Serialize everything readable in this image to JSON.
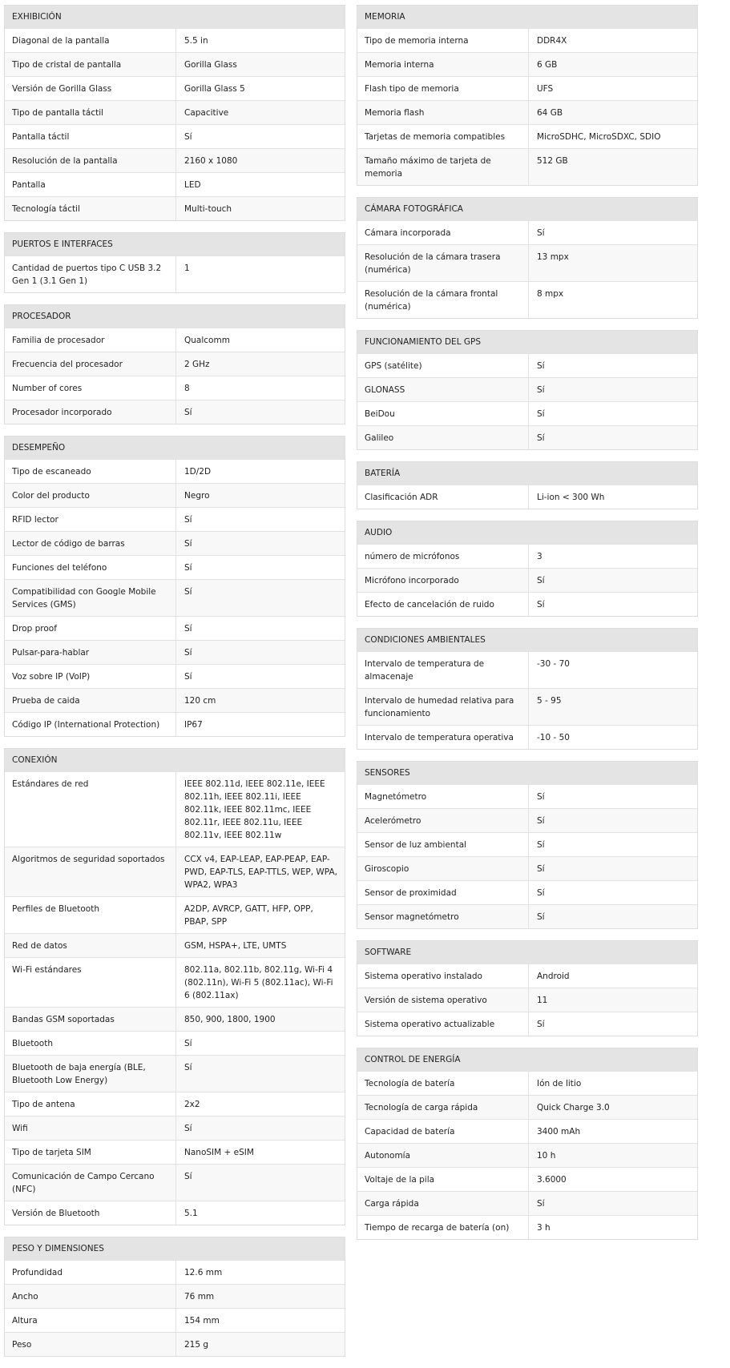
{
  "left": [
    {
      "title": "EXHIBICIÓN",
      "rows": [
        [
          "Diagonal de la pantalla",
          "5.5 in"
        ],
        [
          "Tipo de cristal de pantalla",
          "Gorilla Glass"
        ],
        [
          "Versión de Gorilla Glass",
          "Gorilla Glass 5"
        ],
        [
          "Tipo de pantalla táctil",
          "Capacitive"
        ],
        [
          "Pantalla táctil",
          "Sí"
        ],
        [
          "Resolución de la pantalla",
          "2160 x 1080"
        ],
        [
          "Pantalla",
          "LED"
        ],
        [
          "Tecnología táctil",
          "Multi-touch"
        ]
      ]
    },
    {
      "title": "PUERTOS E INTERFACES",
      "rows": [
        [
          "Cantidad de puertos tipo C USB 3.2 Gen 1 (3.1 Gen 1)",
          "1"
        ]
      ]
    },
    {
      "title": "PROCESADOR",
      "rows": [
        [
          "Familia de procesador",
          "Qualcomm"
        ],
        [
          "Frecuencia del procesador",
          "2 GHz"
        ],
        [
          "Number of cores",
          "8"
        ],
        [
          "Procesador incorporado",
          "Sí"
        ]
      ]
    },
    {
      "title": "DESEMPEÑO",
      "rows": [
        [
          "Tipo de escaneado",
          "1D/2D"
        ],
        [
          "Color del producto",
          "Negro"
        ],
        [
          "RFID lector",
          "Sí"
        ],
        [
          "Lector de código de barras",
          "Sí"
        ],
        [
          "Funciones del teléfono",
          "Sí"
        ],
        [
          "Compatibilidad con Google Mobile Services (GMS)",
          "Sí"
        ],
        [
          "Drop proof",
          "Sí"
        ],
        [
          "Pulsar-para-hablar",
          "Sí"
        ],
        [
          "Voz sobre IP (VoIP)",
          "Sí"
        ],
        [
          "Prueba de caida",
          "120 cm"
        ],
        [
          "Código IP (International Protection)",
          "IP67"
        ]
      ]
    },
    {
      "title": "CONEXIÓN",
      "rows": [
        [
          "Estándares de red",
          "IEEE 802.11d, IEEE 802.11e, IEEE 802.11h, IEEE 802.11i, IEEE 802.11k, IEEE 802.11mc, IEEE 802.11r, IEEE 802.11u, IEEE 802.11v, IEEE 802.11w"
        ],
        [
          "Algoritmos de seguridad soportados",
          "CCX v4, EAP-LEAP, EAP-PEAP, EAP-PWD, EAP-TLS, EAP-TTLS, WEP, WPA, WPA2, WPA3"
        ],
        [
          "Perfiles de Bluetooth",
          "A2DP, AVRCP, GATT, HFP, OPP, PBAP, SPP"
        ],
        [
          "Red de datos",
          "GSM, HSPA+, LTE, UMTS"
        ],
        [
          "Wi-Fi estándares",
          "802.11a, 802.11b, 802.11g, Wi-Fi 4 (802.11n), Wi-Fi 5 (802.11ac), Wi-Fi 6 (802.11ax)"
        ],
        [
          "Bandas GSM soportadas",
          "850, 900, 1800, 1900"
        ],
        [
          "Bluetooth",
          "Sí"
        ],
        [
          "Bluetooth de baja energía (BLE, Bluetooth Low Energy)",
          "Sí"
        ],
        [
          "Tipo de antena",
          "2x2"
        ],
        [
          "Wifi",
          "Sí"
        ],
        [
          "Tipo de tarjeta SIM",
          "NanoSIM + eSIM"
        ],
        [
          "Comunicación de Campo Cercano (NFC)",
          "Sí"
        ],
        [
          "Versión de Bluetooth",
          "5.1"
        ]
      ]
    },
    {
      "title": "PESO Y DIMENSIONES",
      "rows": [
        [
          "Profundidad",
          "12.6 mm"
        ],
        [
          "Ancho",
          "76 mm"
        ],
        [
          "Altura",
          "154 mm"
        ],
        [
          "Peso",
          "215 g"
        ]
      ]
    }
  ],
  "right": [
    {
      "title": "MEMORIA",
      "rows": [
        [
          "Tipo de memoria interna",
          "DDR4X"
        ],
        [
          "Memoria interna",
          "6 GB"
        ],
        [
          "Flash tipo de memoria",
          "UFS"
        ],
        [
          "Memoria flash",
          "64 GB"
        ],
        [
          "Tarjetas de memoria compatibles",
          "MicroSDHC, MicroSDXC, SDIO"
        ],
        [
          "Tamaño máximo de tarjeta de memoria",
          "512 GB"
        ]
      ]
    },
    {
      "title": "CÁMARA FOTOGRÁFICA",
      "rows": [
        [
          "Cámara incorporada",
          "Sí"
        ],
        [
          "Resolución de la cámara trasera (numérica)",
          "13 mpx"
        ],
        [
          "Resolución de la cámara frontal (numérica)",
          "8 mpx"
        ]
      ]
    },
    {
      "title": "FUNCIONAMIENTO DEL GPS",
      "rows": [
        [
          "GPS (satélite)",
          "Sí"
        ],
        [
          "GLONASS",
          "Sí"
        ],
        [
          "BeiDou",
          "Sí"
        ],
        [
          "Galileo",
          "Sí"
        ]
      ]
    },
    {
      "title": "BATERÍA",
      "rows": [
        [
          "Clasificación ADR",
          "Li-ion < 300 Wh"
        ]
      ]
    },
    {
      "title": "AUDIO",
      "rows": [
        [
          "número de micrófonos",
          "3"
        ],
        [
          "Micrófono incorporado",
          "Sí"
        ],
        [
          "Efecto de cancelación de ruido",
          "Sí"
        ]
      ]
    },
    {
      "title": "CONDICIONES AMBIENTALES",
      "rows": [
        [
          "Intervalo de temperatura de almacenaje",
          "-30 - 70"
        ],
        [
          "Intervalo de humedad relativa para funcionamiento",
          "5 - 95"
        ],
        [
          "Intervalo de temperatura operativa",
          "-10 - 50"
        ]
      ]
    },
    {
      "title": "SENSORES",
      "rows": [
        [
          "Magnetómetro",
          "Sí"
        ],
        [
          "Acelerómetro",
          "Sí"
        ],
        [
          "Sensor de luz ambiental",
          "Sí"
        ],
        [
          "Giroscopio",
          "Sí"
        ],
        [
          "Sensor de proximidad",
          "Sí"
        ],
        [
          "Sensor magnetómetro",
          "Sí"
        ]
      ]
    },
    {
      "title": "SOFTWARE",
      "rows": [
        [
          "Sistema operativo instalado",
          "Android"
        ],
        [
          "Versión de sistema operativo",
          "11"
        ],
        [
          "Sistema operativo actualizable",
          "Sí"
        ]
      ]
    },
    {
      "title": "CONTROL DE ENERGÍA",
      "rows": [
        [
          "Tecnología de batería",
          "Ión de litio"
        ],
        [
          "Tecnología de carga rápida",
          "Quick Charge 3.0"
        ],
        [
          "Capacidad de batería",
          "3400 mAh"
        ],
        [
          "Autonomía",
          "10 h"
        ],
        [
          "Voltaje de la pila",
          "3.6000"
        ],
        [
          "Carga rápida",
          "Sí"
        ],
        [
          "Tiempo de recarga de batería (on)",
          "3 h"
        ]
      ]
    }
  ]
}
